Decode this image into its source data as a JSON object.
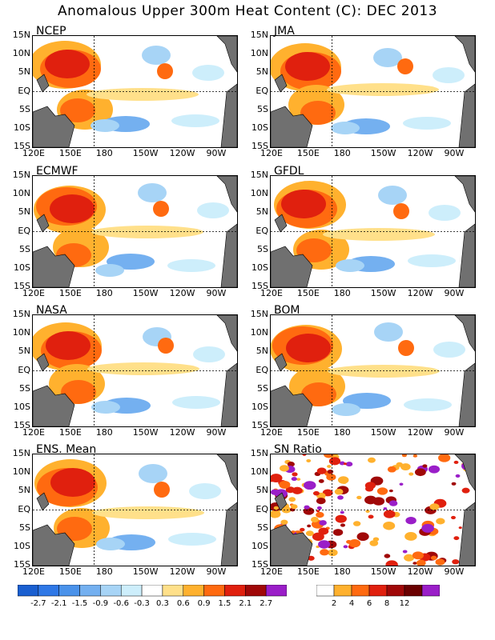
{
  "title": "Anomalous Upper 300m Heat Content (C): DEC 2013",
  "x_ticks": [
    "120E",
    "150E",
    "180",
    "150W",
    "120W",
    "90W"
  ],
  "y_ticks": [
    "15N",
    "10N",
    "5N",
    "EQ",
    "5S",
    "10S",
    "15S"
  ],
  "panels": [
    {
      "label": "NCEP"
    },
    {
      "label": "JMA"
    },
    {
      "label": "ECMWF"
    },
    {
      "label": "GFDL"
    },
    {
      "label": "NASA"
    },
    {
      "label": "BOM"
    },
    {
      "label": "ENS. Mean"
    },
    {
      "label": "SN Ratio"
    }
  ],
  "colorbar_left": {
    "labels": [
      "-2.7",
      "-2.1",
      "-1.5",
      "-0.9",
      "-0.6",
      "-0.3",
      "0.3",
      "0.6",
      "0.9",
      "1.5",
      "2.1",
      "2.7"
    ],
    "colors": [
      "#1a5fd0",
      "#2f78e6",
      "#4a92ea",
      "#74b0f0",
      "#a7d4f6",
      "#cdeefb",
      "#ffffff",
      "#ffe08a",
      "#ffb12e",
      "#ff6a10",
      "#e0200e",
      "#a00808",
      "#9a1ec8"
    ]
  },
  "colorbar_right": {
    "labels": [
      "2",
      "4",
      "6",
      "8",
      "12"
    ],
    "colors": [
      "#ffffff",
      "#ffb12e",
      "#ff6a10",
      "#e0200e",
      "#a00808",
      "#6a0000",
      "#9a1ec8"
    ]
  },
  "chart_data": {
    "type": "heatmap",
    "title": "Anomalous Upper 300m Heat Content (C): DEC 2013",
    "x_range": [
      "120E",
      "80W"
    ],
    "y_range": [
      "15S",
      "15N"
    ],
    "x_tick_labels": [
      "120E",
      "150E",
      "180",
      "150W",
      "120W",
      "90W"
    ],
    "y_tick_labels": [
      "15N",
      "10N",
      "5N",
      "EQ",
      "5S",
      "10S",
      "15S"
    ],
    "panels": [
      "NCEP",
      "JMA",
      "ECMWF",
      "GFDL",
      "NASA",
      "BOM",
      "ENS. Mean",
      "SN Ratio"
    ],
    "anomaly_levels": [
      -2.7,
      -2.1,
      -1.5,
      -0.9,
      -0.6,
      -0.3,
      0.3,
      0.6,
      0.9,
      1.5,
      2.1,
      2.7
    ],
    "sn_ratio_levels": [
      2,
      4,
      6,
      8,
      12
    ]
  }
}
